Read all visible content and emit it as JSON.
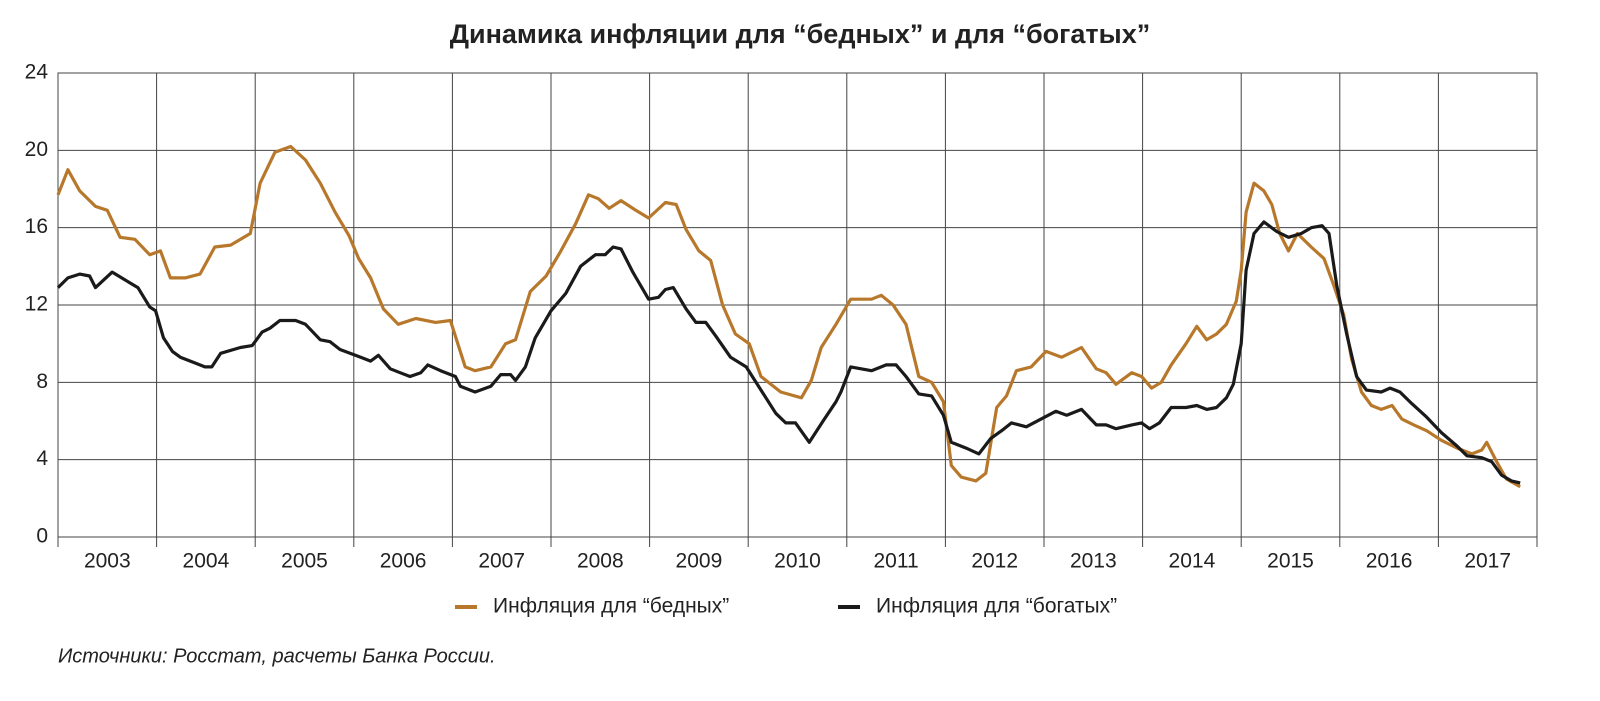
{
  "chart_data": {
    "type": "line",
    "title": "Динамика инфляции для “бедных” и для “богатых”",
    "source": "Источники: Росстат, расчеты Банка России.",
    "ylim": [
      0,
      24
    ],
    "yticks": [
      0,
      4,
      8,
      12,
      16,
      20,
      24
    ],
    "grid": true,
    "xlim": [
      2003,
      2018
    ],
    "xticks": [
      2003,
      2004,
      2005,
      2006,
      2007,
      2008,
      2009,
      2010,
      2011,
      2012,
      2013,
      2014,
      2015,
      2016,
      2017,
      2018
    ],
    "categories": [
      "2003",
      "2004",
      "2005",
      "2006",
      "2007",
      "2008",
      "2009",
      "2010",
      "2011",
      "2012",
      "2013",
      "2014",
      "2015",
      "2016",
      "2017"
    ],
    "legend": "bottom",
    "series": [
      {
        "name": "Инфляция для “бедных”",
        "color": "#b8782c",
        "x": [
          2003.0,
          2003.1,
          2003.22,
          2003.38,
          2003.5,
          2003.63,
          2003.78,
          2003.93,
          2004.04,
          2004.14,
          2004.29,
          2004.44,
          2004.59,
          2004.75,
          2004.95,
          2005.05,
          2005.2,
          2005.36,
          2005.51,
          2005.66,
          2005.81,
          2005.95,
          2006.05,
          2006.17,
          2006.3,
          2006.45,
          2006.63,
          2006.83,
          2006.98,
          2007.13,
          2007.23,
          2007.39,
          2007.54,
          2007.64,
          2007.79,
          2007.95,
          2008.1,
          2008.25,
          2008.38,
          2008.48,
          2008.59,
          2008.71,
          2008.86,
          2008.99,
          2009.16,
          2009.27,
          2009.37,
          2009.5,
          2009.62,
          2009.74,
          2009.87,
          2010.01,
          2010.13,
          2010.33,
          2010.54,
          2010.64,
          2010.74,
          2010.89,
          2011.04,
          2011.25,
          2011.35,
          2011.47,
          2011.6,
          2011.73,
          2011.86,
          2011.98,
          2012.06,
          2012.16,
          2012.31,
          2012.41,
          2012.52,
          2012.62,
          2012.72,
          2012.87,
          2013.02,
          2013.18,
          2013.38,
          2013.53,
          2013.63,
          2013.73,
          2013.89,
          2013.99,
          2014.09,
          2014.19,
          2014.29,
          2014.44,
          2014.55,
          2014.65,
          2014.75,
          2014.85,
          2014.95,
          2015.0,
          2015.05,
          2015.13,
          2015.23,
          2015.31,
          2015.39,
          2015.48,
          2015.57,
          2015.71,
          2015.84,
          2015.94,
          2016.04,
          2016.12,
          2016.22,
          2016.32,
          2016.42,
          2016.53,
          2016.63,
          2016.75,
          2016.88,
          2017.03,
          2017.19,
          2017.34,
          2017.44,
          2017.49,
          2017.59,
          2017.69,
          2017.83
        ],
        "values": [
          17.7,
          19,
          17.9,
          17.1,
          16.9,
          15.5,
          15.4,
          14.6,
          14.8,
          13.4,
          13.4,
          13.6,
          15,
          15.1,
          15.7,
          18.3,
          19.9,
          20.2,
          19.5,
          18.3,
          16.8,
          15.6,
          14.4,
          13.4,
          11.8,
          11,
          11.3,
          11.1,
          11.2,
          8.8,
          8.6,
          8.8,
          10,
          10.2,
          12.7,
          13.5,
          14.8,
          16.2,
          17.7,
          17.5,
          17.0,
          17.4,
          16.9,
          16.5,
          17.3,
          17.2,
          15.9,
          14.8,
          14.3,
          12.0,
          10.5,
          10,
          8.3,
          7.5,
          7.2,
          8.1,
          9.8,
          11.0,
          12.3,
          12.3,
          12.5,
          12,
          11.0,
          8.3,
          8.0,
          7.0,
          3.7,
          3.1,
          2.9,
          3.3,
          6.7,
          7.3,
          8.6,
          8.8,
          9.6,
          9.3,
          9.8,
          8.7,
          8.5,
          7.9,
          8.5,
          8.3,
          7.7,
          8.0,
          8.9,
          10.0,
          10.9,
          10.2,
          10.5,
          11,
          12.2,
          13.8,
          16.8,
          18.3,
          17.9,
          17.2,
          15.7,
          14.8,
          15.7,
          15,
          14.4,
          13.0,
          11.5,
          9.2,
          7.5,
          6.8,
          6.6,
          6.8,
          6.1,
          5.8,
          5.5,
          5,
          4.6,
          4.3,
          4.5,
          4.9,
          3.9,
          3.0,
          2.6
        ]
      },
      {
        "name": "Инфляция для “богатых”",
        "color": "#1a1a1a",
        "x": [
          2003.0,
          2003.1,
          2003.22,
          2003.32,
          2003.38,
          2003.55,
          2003.68,
          2003.81,
          2003.93,
          2003.99,
          2004.07,
          2004.16,
          2004.24,
          2004.39,
          2004.49,
          2004.56,
          2004.65,
          2004.85,
          2004.97,
          2005.07,
          2005.15,
          2005.25,
          2005.41,
          2005.51,
          2005.66,
          2005.76,
          2005.86,
          2006.07,
          2006.17,
          2006.25,
          2006.37,
          2006.47,
          2006.57,
          2006.68,
          2006.75,
          2006.88,
          2007.03,
          2007.08,
          2007.23,
          2007.39,
          2007.49,
          2007.59,
          2007.64,
          2007.74,
          2007.84,
          2008.0,
          2008.15,
          2008.3,
          2008.45,
          2008.55,
          2008.63,
          2008.71,
          2008.83,
          2008.99,
          2009.09,
          2009.16,
          2009.24,
          2009.37,
          2009.47,
          2009.57,
          2009.67,
          2009.82,
          2009.98,
          2010.13,
          2010.28,
          2010.38,
          2010.48,
          2010.62,
          2010.76,
          2010.89,
          2010.94,
          2011.04,
          2011.25,
          2011.4,
          2011.5,
          2011.6,
          2011.73,
          2011.86,
          2011.98,
          2012.06,
          2012.21,
          2012.34,
          2012.46,
          2012.57,
          2012.67,
          2012.82,
          2012.97,
          2013.12,
          2013.23,
          2013.38,
          2013.53,
          2013.63,
          2013.73,
          2013.89,
          2013.99,
          2014.07,
          2014.17,
          2014.29,
          2014.44,
          2014.55,
          2014.65,
          2014.75,
          2014.85,
          2014.92,
          2015.0,
          2015.05,
          2015.13,
          2015.23,
          2015.36,
          2015.48,
          2015.61,
          2015.71,
          2015.82,
          2015.89,
          2015.97,
          2016.07,
          2016.17,
          2016.27,
          2016.42,
          2016.51,
          2016.61,
          2016.73,
          2016.88,
          2017.03,
          2017.19,
          2017.29,
          2017.44,
          2017.54,
          2017.64,
          2017.74,
          2017.83
        ],
        "values": [
          12.9,
          13.4,
          13.6,
          13.5,
          12.9,
          13.7,
          13.3,
          12.9,
          11.9,
          11.7,
          10.3,
          9.6,
          9.3,
          9.0,
          8.8,
          8.8,
          9.5,
          9.8,
          9.9,
          10.6,
          10.8,
          11.2,
          11.2,
          11.0,
          10.2,
          10.1,
          9.7,
          9.3,
          9.1,
          9.4,
          8.7,
          8.5,
          8.3,
          8.5,
          8.9,
          8.6,
          8.3,
          7.8,
          7.5,
          7.8,
          8.4,
          8.4,
          8.1,
          8.8,
          10.3,
          11.7,
          12.6,
          14.0,
          14.6,
          14.6,
          15.0,
          14.9,
          13.7,
          12.3,
          12.4,
          12.8,
          12.9,
          11.8,
          11.1,
          11.1,
          10.4,
          9.3,
          8.8,
          7.6,
          6.4,
          5.9,
          5.9,
          4.9,
          6,
          7.0,
          7.5,
          8.8,
          8.6,
          8.9,
          8.9,
          8.3,
          7.4,
          7.3,
          6.3,
          4.9,
          4.6,
          4.3,
          5.1,
          5.5,
          5.9,
          5.7,
          6.1,
          6.5,
          6.3,
          6.6,
          5.8,
          5.8,
          5.6,
          5.8,
          5.9,
          5.6,
          5.9,
          6.7,
          6.7,
          6.8,
          6.6,
          6.7,
          7.2,
          7.9,
          10,
          13.8,
          15.7,
          16.3,
          15.8,
          15.5,
          15.7,
          16,
          16.1,
          15.7,
          13.0,
          10.5,
          8.3,
          7.6,
          7.5,
          7.7,
          7.5,
          6.9,
          6.2,
          5.4,
          4.7,
          4.2,
          4.1,
          3.9,
          3.2,
          2.9,
          2.8
        ]
      }
    ]
  }
}
